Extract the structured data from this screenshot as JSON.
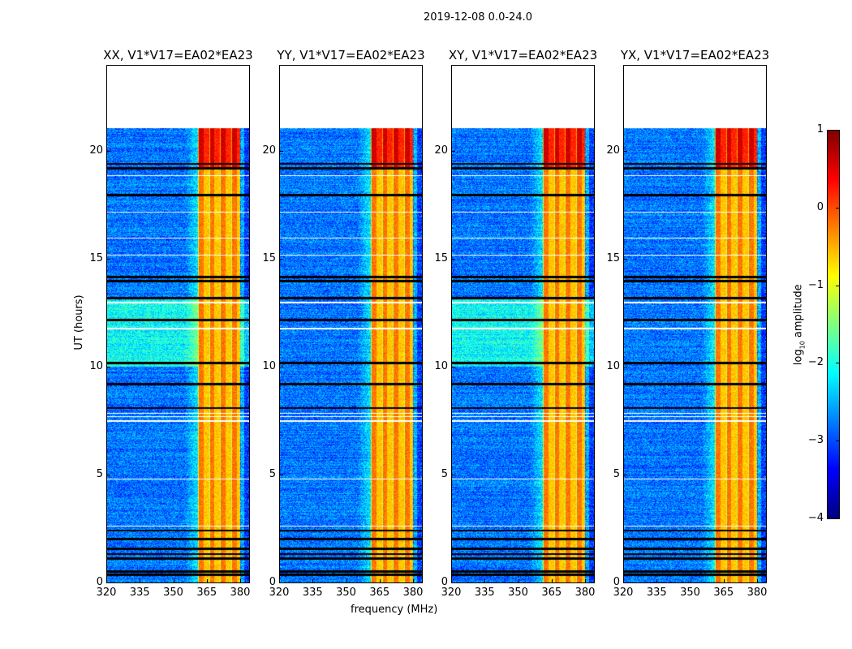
{
  "chart_data": {
    "type": "heatmap",
    "title": "2019-12-08 0.0-24.0",
    "xlabel": "frequency (MHz)",
    "ylabel": "UT (hours)",
    "xlim": [
      320,
      384
    ],
    "ylim": [
      0,
      24
    ],
    "xticks": [
      320,
      335,
      350,
      365,
      380
    ],
    "yticks": [
      0,
      5,
      10,
      15,
      20
    ],
    "data_time_range_hours": [
      0,
      21.1
    ],
    "panels": [
      {
        "title": "XX, V1*V17=EA02*EA23",
        "pol": "XX"
      },
      {
        "title": "YY, V1*V17=EA02*EA23",
        "pol": "YY"
      },
      {
        "title": "XY, V1*V17=EA02*EA23",
        "pol": "XY"
      },
      {
        "title": "YX, V1*V17=EA02*EA23",
        "pol": "YX"
      }
    ],
    "background_log_amplitude": -2.8,
    "rfi_band_mhz": [
      361,
      380
    ],
    "rfi_band_log_amplitude": -0.6,
    "rfi_band_high_after_hour": 19.2,
    "flagged_rows_hours": [
      0.35,
      0.5,
      1.1,
      1.3,
      1.55,
      2.0,
      2.4,
      8.1,
      9.2,
      10.2,
      12.2,
      13.2,
      14.0,
      14.2,
      18.0,
      19.25,
      19.45
    ],
    "blank_rows_hours": [
      2.6,
      4.8,
      7.5,
      7.7,
      7.85,
      11.8,
      13.0,
      15.2,
      16.0,
      17.2,
      18.9
    ],
    "colorbar": {
      "label_prefix": "log",
      "label_sub": "10",
      "label_suffix": " amplitude",
      "colormap": "jet",
      "range": [
        -4,
        1
      ],
      "ticks": [
        1,
        0,
        -1,
        -2,
        -3,
        -4
      ]
    }
  }
}
